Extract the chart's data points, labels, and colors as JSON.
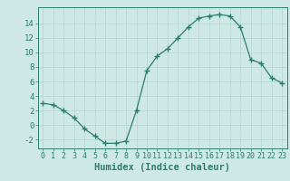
{
  "x": [
    0,
    1,
    2,
    3,
    4,
    5,
    6,
    7,
    8,
    9,
    10,
    11,
    12,
    13,
    14,
    15,
    16,
    17,
    18,
    19,
    20,
    21,
    22,
    23
  ],
  "y": [
    3.0,
    2.8,
    2.0,
    1.0,
    -0.5,
    -1.5,
    -2.5,
    -2.5,
    -2.2,
    2.0,
    7.5,
    9.5,
    10.5,
    12.0,
    13.5,
    14.7,
    15.0,
    15.2,
    15.0,
    13.5,
    9.0,
    8.5,
    6.5,
    5.8
  ],
  "line_color": "#2e7d6e",
  "marker": "+",
  "marker_size": 4,
  "marker_linewidth": 1.0,
  "bg_color": "#cde8e5",
  "grid_color": "#b8d8d4",
  "xlabel": "Humidex (Indice chaleur)",
  "xlim": [
    -0.5,
    23.5
  ],
  "ylim": [
    -3.2,
    16.2
  ],
  "yticks": [
    -2,
    0,
    2,
    4,
    6,
    8,
    10,
    12,
    14
  ],
  "xticks": [
    0,
    1,
    2,
    3,
    4,
    5,
    6,
    7,
    8,
    9,
    10,
    11,
    12,
    13,
    14,
    15,
    16,
    17,
    18,
    19,
    20,
    21,
    22,
    23
  ],
  "tick_color": "#2e7d6e",
  "label_color": "#2e7d6e",
  "axis_fontsize": 6.0,
  "xlabel_fontsize": 7.5
}
